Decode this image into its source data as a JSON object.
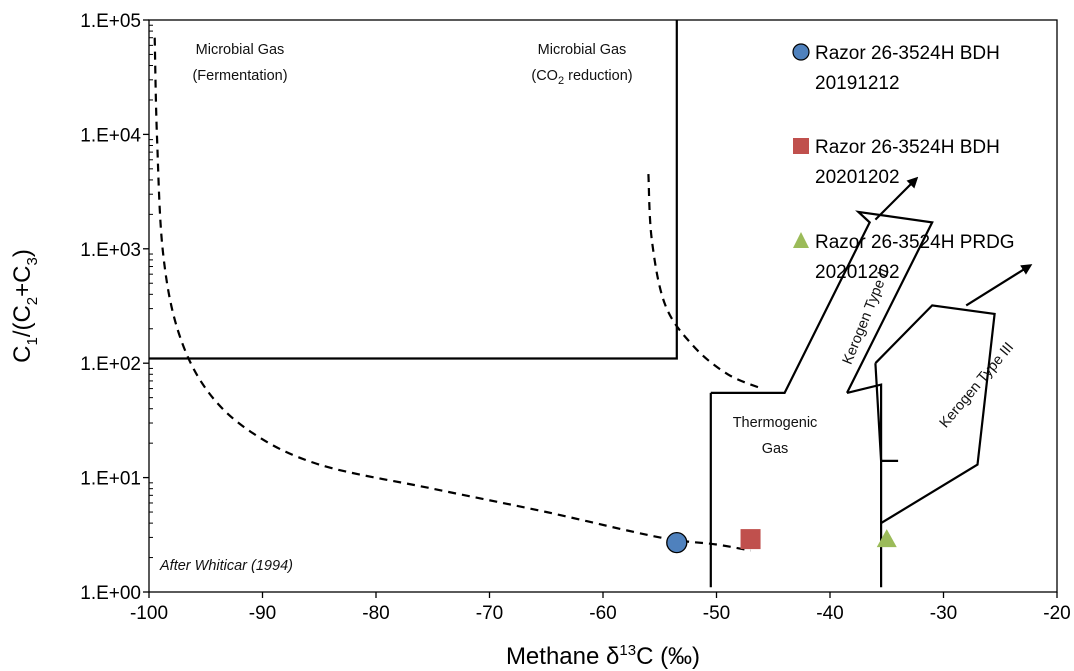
{
  "chart_data": {
    "type": "scatter",
    "title": "",
    "xlabel": {
      "prefix": "Methane ",
      "delta": "δ",
      "sup": "13",
      "suffix": "C (‰)"
    },
    "ylabel": {
      "c1": "C",
      "c1sub": "1",
      "mid": "/(C",
      "c2sub": "2",
      "plus": "+C",
      "c3sub": "3",
      "end": ")"
    },
    "xlim": [
      -100,
      -20
    ],
    "ylim": [
      1,
      100000
    ],
    "y_scale": "log",
    "x_ticks": [
      "-100",
      "-90",
      "-80",
      "-70",
      "-60",
      "-50",
      "-40",
      "-30",
      "-20"
    ],
    "x_tick_values": [
      -100,
      -90,
      -80,
      -70,
      -60,
      -50,
      -40,
      -30,
      -20
    ],
    "y_ticks": [
      "1.E+00",
      "1.E+01",
      "1.E+02",
      "1.E+03",
      "1.E+04",
      "1.E+05"
    ],
    "y_tick_values": [
      1,
      10,
      100,
      1000,
      10000,
      100000
    ],
    "grid": false,
    "legend_position": "top-right",
    "series": [
      {
        "name_line1": "Razor 26-3524H BDH",
        "name_line2": "20191212",
        "marker": "circle",
        "color": "#4f81bd",
        "x": [
          -53.5
        ],
        "y": [
          2.7
        ]
      },
      {
        "name_line1": "Razor 26-3524H BDH",
        "name_line2": "20201202",
        "marker": "square",
        "color": "#c0504d",
        "x": [
          -47
        ],
        "y": [
          2.9
        ]
      },
      {
        "name_line1": "Razor 26-3524H PRDG",
        "name_line2": "20201202",
        "marker": "triangle",
        "color": "#9bbb59",
        "x": [
          -35
        ],
        "y": [
          2.9
        ]
      }
    ],
    "annotations": {
      "microbial_fermentation": [
        "Microbial Gas",
        "(Fermentation)"
      ],
      "microbial_co2": {
        "line1": "Microbial Gas",
        "line2_pre": "(CO",
        "line2_sub": "2",
        "line2_post": " reduction)"
      },
      "thermogenic": [
        "Thermogenic",
        "Gas"
      ],
      "kerogen_ii": "Kerogen Type II",
      "kerogen_iii": "Kerogen Type III",
      "credit": "After Whiticar (1994)"
    },
    "region_lines": {
      "microbial_box_top": [
        [
          -53.5,
          100000
        ],
        [
          -53.5,
          110
        ],
        [
          -100,
          110
        ]
      ],
      "thermogenic_left": [
        [
          -50.5,
          1.1
        ],
        [
          -50.5,
          55
        ]
      ],
      "kerogen_ii_band": [
        [
          -50.5,
          55
        ],
        [
          -44,
          55
        ],
        [
          -36.5,
          1700
        ],
        [
          -37.5,
          2100
        ],
        [
          -31,
          1700
        ],
        [
          -38.5,
          55
        ]
      ],
      "kerogen_ii_right": [
        [
          -38.5,
          55
        ],
        [
          -35.5,
          65
        ],
        [
          -35.5,
          1.1
        ]
      ],
      "kerogen_iii_band": [
        [
          -35.5,
          4
        ],
        [
          -27,
          13
        ],
        [
          -25.5,
          270
        ],
        [
          -31,
          320
        ],
        [
          -36,
          100
        ]
      ],
      "kerogen_iii_left": [
        [
          -36,
          100
        ],
        [
          -35.5,
          14
        ],
        [
          -34,
          14
        ]
      ],
      "dashed_fermentation": [
        [
          -99.5,
          70000
        ],
        [
          -99.3,
          10000
        ],
        [
          -98.8,
          1000
        ],
        [
          -97.5,
          200
        ],
        [
          -95,
          60
        ],
        [
          -91,
          25
        ],
        [
          -85,
          13
        ],
        [
          -75,
          8
        ],
        [
          -65,
          5
        ],
        [
          -55,
          3
        ],
        [
          -50,
          2.6
        ],
        [
          -47,
          2.3
        ]
      ],
      "dashed_co2": [
        [
          -56,
          4500
        ],
        [
          -55.7,
          1200
        ],
        [
          -54.5,
          320
        ],
        [
          -52,
          140
        ],
        [
          -49,
          80
        ],
        [
          -46,
          60
        ]
      ],
      "kerogen_ii_arrow": [
        [
          -36,
          1800
        ],
        [
          -32.5,
          4000
        ]
      ],
      "kerogen_iii_arrow": [
        [
          -28,
          320
        ],
        [
          -22.5,
          700
        ]
      ]
    }
  }
}
